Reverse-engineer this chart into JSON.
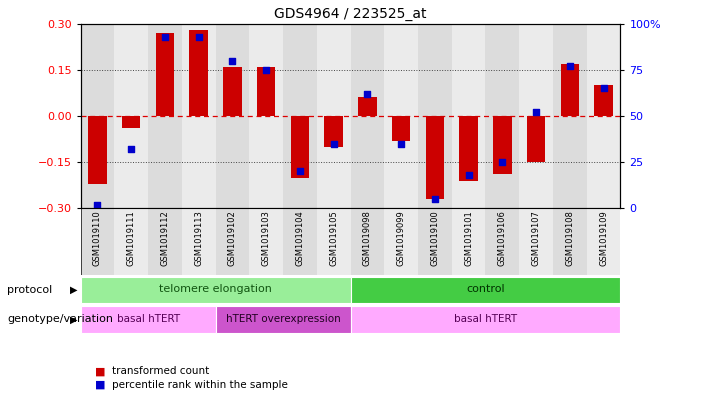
{
  "title": "GDS4964 / 223525_at",
  "samples": [
    "GSM1019110",
    "GSM1019111",
    "GSM1019112",
    "GSM1019113",
    "GSM1019102",
    "GSM1019103",
    "GSM1019104",
    "GSM1019105",
    "GSM1019098",
    "GSM1019099",
    "GSM1019100",
    "GSM1019101",
    "GSM1019106",
    "GSM1019107",
    "GSM1019108",
    "GSM1019109"
  ],
  "bar_values": [
    -0.22,
    -0.04,
    0.27,
    0.28,
    0.16,
    0.16,
    -0.2,
    -0.1,
    0.06,
    -0.08,
    -0.27,
    -0.21,
    -0.19,
    -0.15,
    0.17,
    0.1
  ],
  "dot_values": [
    2,
    32,
    93,
    93,
    80,
    75,
    20,
    35,
    62,
    35,
    5,
    18,
    25,
    52,
    77,
    65
  ],
  "ylim": [
    -0.3,
    0.3
  ],
  "yticks": [
    -0.3,
    -0.15,
    0.0,
    0.15,
    0.3
  ],
  "y2ticks": [
    0,
    25,
    50,
    75,
    100
  ],
  "bar_color": "#cc0000",
  "dot_color": "#0000cc",
  "zero_line_color": "#dd0000",
  "dotted_line_color": "#444444",
  "col_bg_even": "#dcdcdc",
  "col_bg_odd": "#ebebeb",
  "protocol_telomere": {
    "label": "telomere elongation",
    "color": "#99ee99",
    "start": 0,
    "end": 8
  },
  "protocol_control": {
    "label": "control",
    "color": "#44cc44",
    "start": 8,
    "end": 16
  },
  "genotype_basal1": {
    "label": "basal hTERT",
    "color": "#ffaaff",
    "start": 0,
    "end": 4
  },
  "genotype_hTERT": {
    "label": "hTERT overexpression",
    "color": "#cc55cc",
    "start": 4,
    "end": 8
  },
  "genotype_basal2": {
    "label": "basal hTERT",
    "color": "#ffaaff",
    "start": 8,
    "end": 16
  },
  "legend_bar_label": "transformed count",
  "legend_dot_label": "percentile rank within the sample",
  "label_protocol": "protocol",
  "label_genotype": "genotype/variation"
}
